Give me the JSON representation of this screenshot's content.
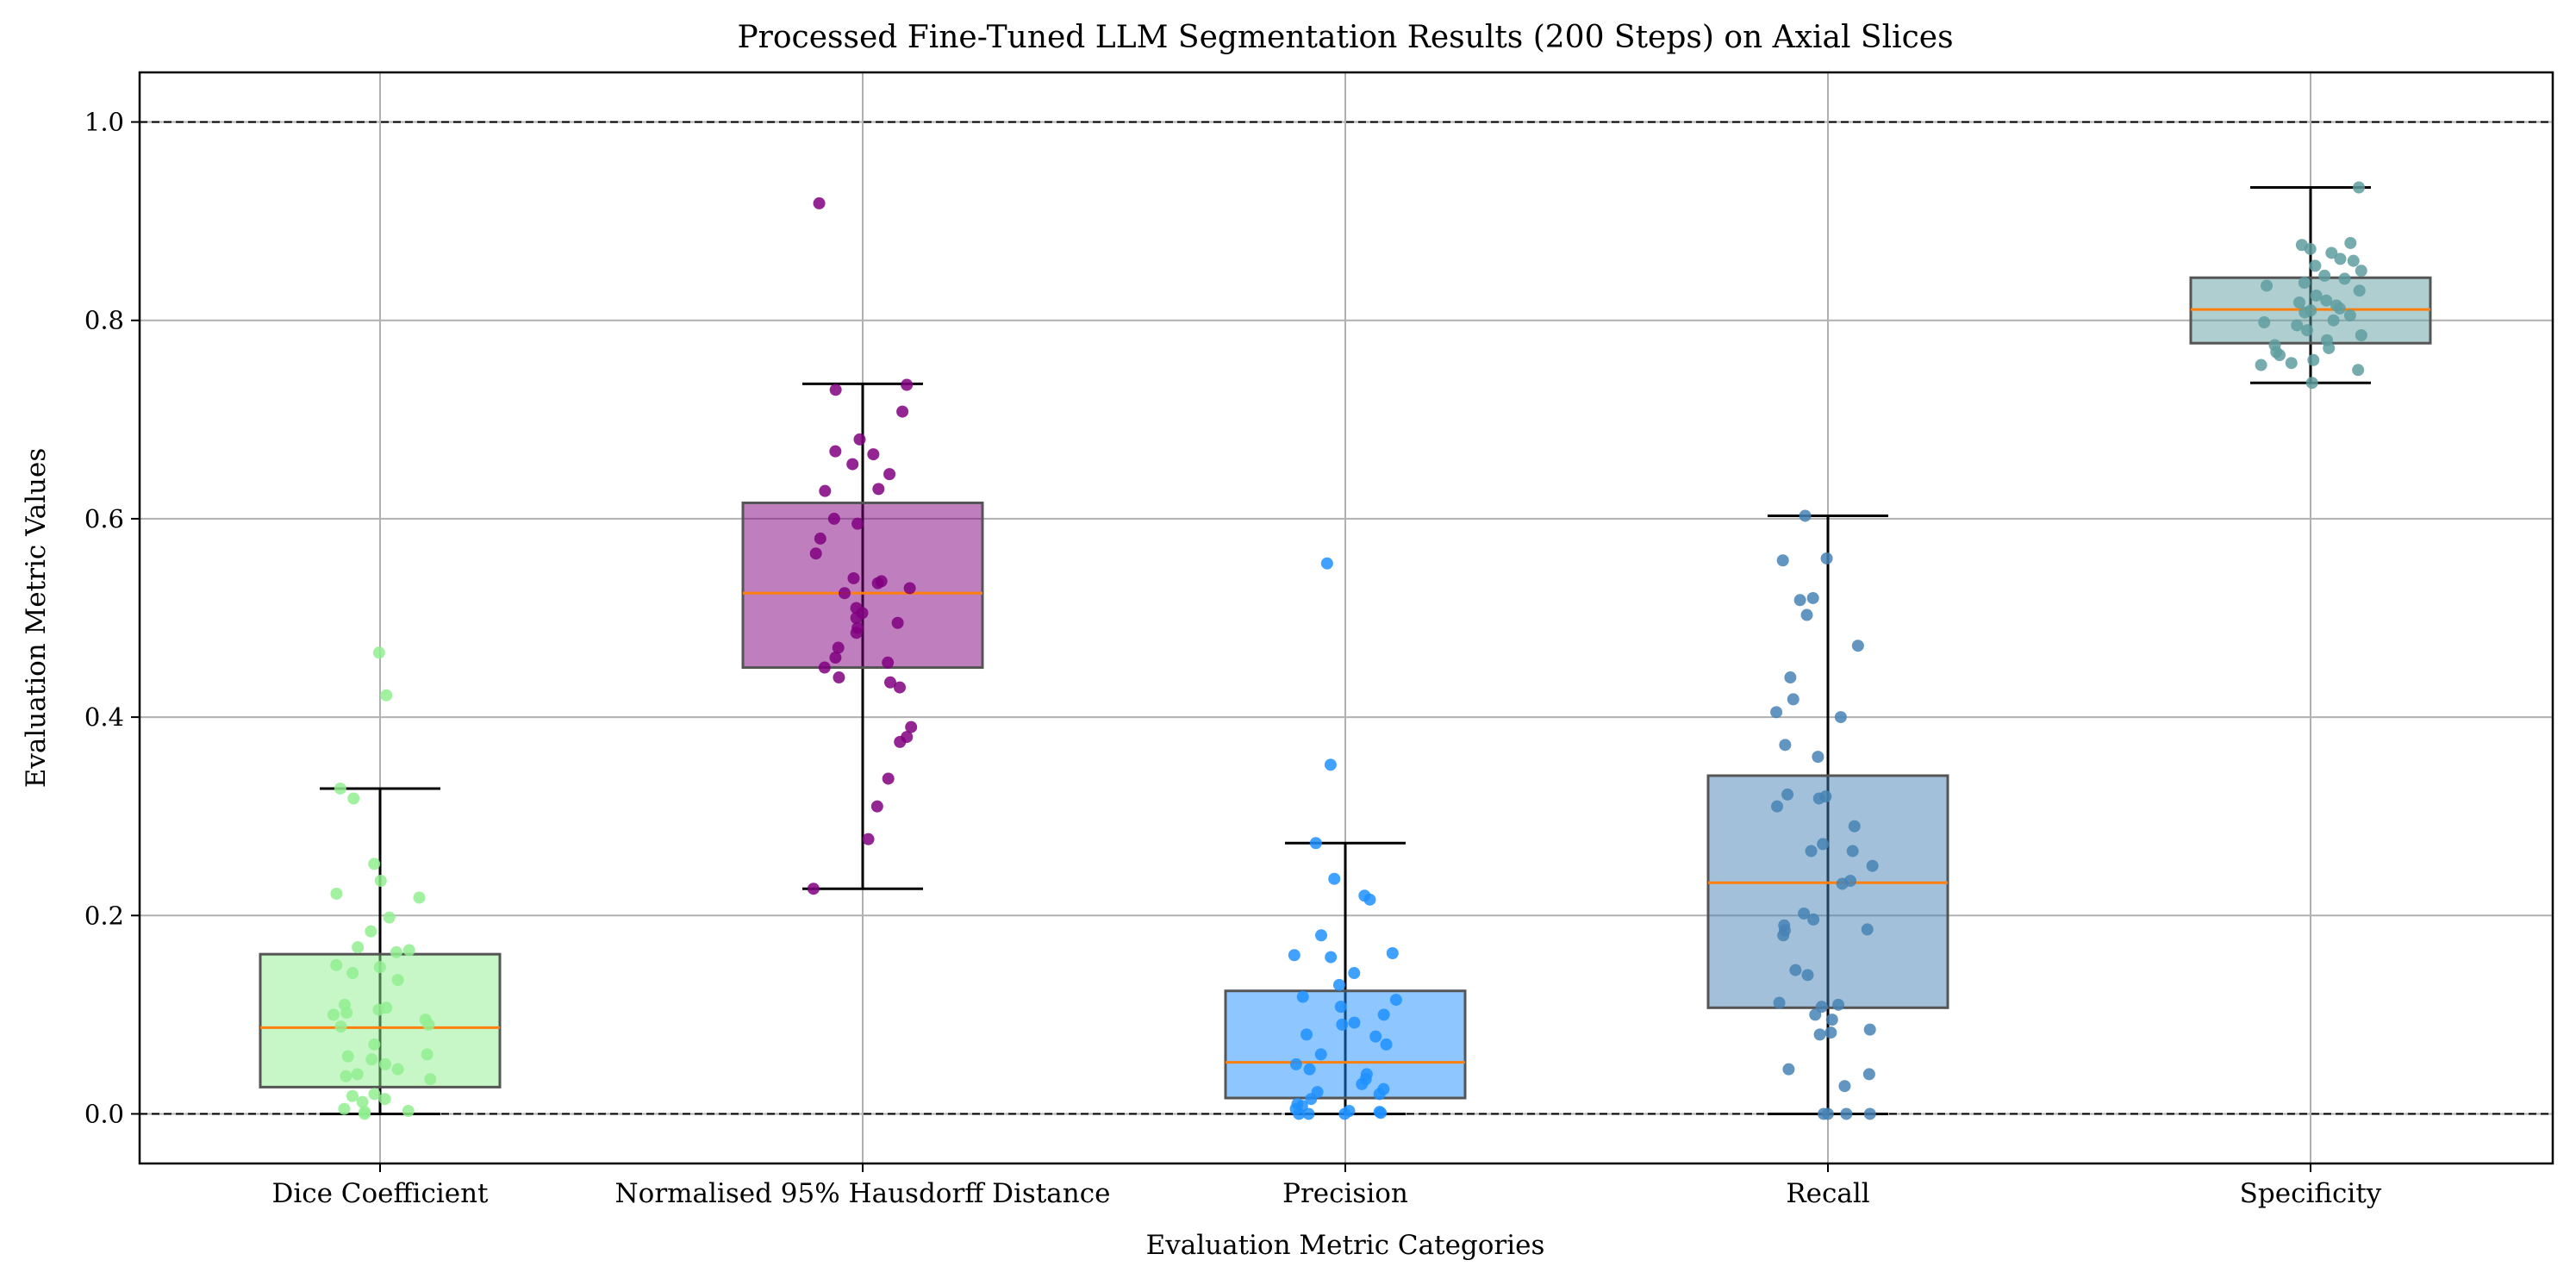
{
  "chart_data": {
    "type": "box",
    "title": "Processed Fine-Tuned LLM Segmentation Results (200 Steps) on Axial Slices",
    "xlabel": "Evaluation Metric Categories",
    "ylabel": "Evaluation Metric Values",
    "ylim": [
      -0.05,
      1.05
    ],
    "yticks": [
      0.0,
      0.2,
      0.4,
      0.6,
      0.8,
      1.0
    ],
    "ytick_labels": [
      "0.0",
      "0.2",
      "0.4",
      "0.6",
      "0.8",
      "1.0"
    ],
    "grid": true,
    "reference_lines": [
      0.0,
      1.0
    ],
    "median_color": "#ff7f0e",
    "categories": [
      "Dice Coefficient",
      "Normalised 95% Hausdorff Distance",
      "Precision",
      "Recall",
      "Specificity"
    ],
    "boxes": [
      {
        "name": "Dice Coefficient",
        "color": "#90ee90",
        "q1": 0.027,
        "median": 0.087,
        "q3": 0.161,
        "whisker_low": 0.0,
        "whisker_high": 0.328,
        "points": [
          0.465,
          0.422,
          0.328,
          0.318,
          0.252,
          0.235,
          0.222,
          0.218,
          0.198,
          0.184,
          0.168,
          0.165,
          0.163,
          0.15,
          0.148,
          0.142,
          0.135,
          0.11,
          0.107,
          0.105,
          0.102,
          0.1,
          0.095,
          0.09,
          0.088,
          0.07,
          0.06,
          0.058,
          0.055,
          0.05,
          0.045,
          0.04,
          0.038,
          0.035,
          0.02,
          0.018,
          0.015,
          0.012,
          0.005,
          0.003,
          0.002,
          0.0
        ]
      },
      {
        "name": "Normalised 95% Hausdorff Distance",
        "color": "#800080",
        "q1": 0.45,
        "median": 0.525,
        "q3": 0.616,
        "whisker_low": 0.227,
        "whisker_high": 0.736,
        "points": [
          0.918,
          0.735,
          0.73,
          0.708,
          0.68,
          0.668,
          0.665,
          0.655,
          0.645,
          0.63,
          0.628,
          0.6,
          0.595,
          0.58,
          0.565,
          0.54,
          0.537,
          0.535,
          0.53,
          0.525,
          0.51,
          0.505,
          0.5,
          0.495,
          0.49,
          0.485,
          0.47,
          0.46,
          0.455,
          0.45,
          0.44,
          0.435,
          0.43,
          0.39,
          0.38,
          0.375,
          0.338,
          0.31,
          0.277,
          0.227
        ]
      },
      {
        "name": "Precision",
        "color": "#1e90ff",
        "q1": 0.016,
        "median": 0.052,
        "q3": 0.124,
        "whisker_low": 0.0,
        "whisker_high": 0.273,
        "points": [
          0.555,
          0.352,
          0.273,
          0.237,
          0.22,
          0.216,
          0.18,
          0.162,
          0.16,
          0.158,
          0.142,
          0.13,
          0.118,
          0.115,
          0.108,
          0.1,
          0.092,
          0.09,
          0.08,
          0.078,
          0.07,
          0.06,
          0.05,
          0.045,
          0.04,
          0.035,
          0.03,
          0.025,
          0.022,
          0.02,
          0.015,
          0.01,
          0.008,
          0.005,
          0.003,
          0.002,
          0.001,
          0.0,
          0.0,
          0.0
        ]
      },
      {
        "name": "Recall",
        "color": "#4682b4",
        "q1": 0.107,
        "median": 0.233,
        "q3": 0.341,
        "whisker_low": 0.0,
        "whisker_high": 0.603,
        "points": [
          0.603,
          0.56,
          0.558,
          0.52,
          0.518,
          0.503,
          0.472,
          0.44,
          0.418,
          0.405,
          0.4,
          0.372,
          0.36,
          0.322,
          0.32,
          0.318,
          0.31,
          0.29,
          0.272,
          0.265,
          0.265,
          0.25,
          0.235,
          0.232,
          0.202,
          0.196,
          0.19,
          0.186,
          0.185,
          0.18,
          0.145,
          0.14,
          0.112,
          0.11,
          0.108,
          0.1,
          0.095,
          0.085,
          0.082,
          0.08,
          0.045,
          0.04,
          0.028,
          0.0,
          0.0,
          0.0,
          0.0
        ]
      },
      {
        "name": "Specificity",
        "color": "#5f9ea0",
        "q1": 0.777,
        "median": 0.811,
        "q3": 0.843,
        "whisker_low": 0.737,
        "whisker_high": 0.934,
        "points": [
          0.934,
          0.878,
          0.876,
          0.872,
          0.868,
          0.862,
          0.86,
          0.855,
          0.85,
          0.845,
          0.842,
          0.838,
          0.835,
          0.83,
          0.825,
          0.82,
          0.818,
          0.815,
          0.812,
          0.81,
          0.808,
          0.805,
          0.8,
          0.798,
          0.795,
          0.79,
          0.785,
          0.78,
          0.775,
          0.772,
          0.768,
          0.765,
          0.76,
          0.757,
          0.755,
          0.75,
          0.737
        ]
      }
    ]
  }
}
